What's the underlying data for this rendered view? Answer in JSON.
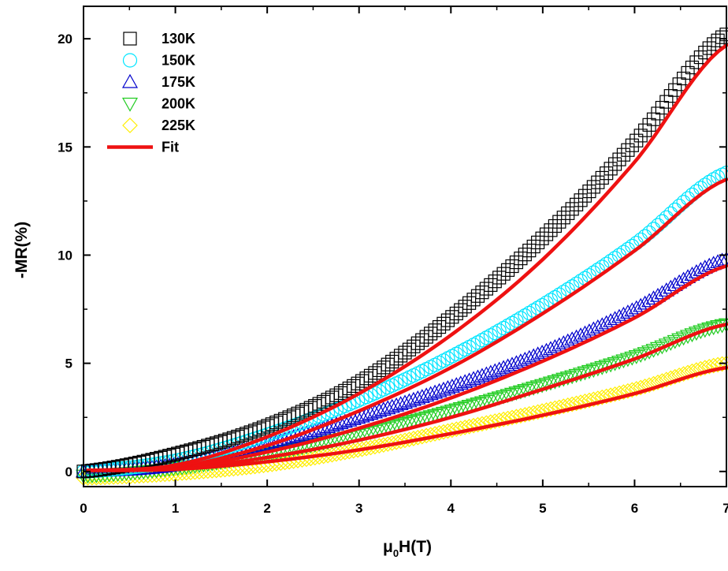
{
  "chart_data": {
    "type": "scatter",
    "xlabel_main": "μ",
    "xlabel_sub": "0",
    "xlabel_rest": "H(T)",
    "ylabel": "-MR(%)",
    "xlim": [
      0,
      7
    ],
    "ylim": [
      -0.7,
      21.5
    ],
    "x_ticks": [
      "0",
      "1",
      "2",
      "3",
      "4",
      "5",
      "6",
      "7"
    ],
    "y_ticks": [
      "0",
      "5",
      "10",
      "15",
      "20"
    ],
    "x_tick_values": [
      0,
      1,
      2,
      3,
      4,
      5,
      6,
      7
    ],
    "y_tick_values": [
      0,
      5,
      10,
      15,
      20
    ],
    "legend_placement": "top-left",
    "series": [
      {
        "name": "130K",
        "marker": "square",
        "color": "#000000",
        "offset": 0.25,
        "data": [
          [
            0.0,
            0.0
          ],
          [
            1.0,
            0.8
          ],
          [
            2.0,
            2.1
          ],
          [
            3.0,
            4.1
          ],
          [
            4.0,
            7.1
          ],
          [
            5.0,
            10.8
          ],
          [
            6.0,
            15.2
          ],
          [
            7.0,
            20.2
          ]
        ]
      },
      {
        "name": "150K",
        "marker": "circle",
        "color": "#00e5ff",
        "offset": 0.25,
        "data": [
          [
            0.0,
            0.0
          ],
          [
            1.0,
            0.5
          ],
          [
            2.0,
            1.7
          ],
          [
            3.0,
            3.3
          ],
          [
            4.0,
            5.3
          ],
          [
            5.0,
            7.7
          ],
          [
            6.0,
            10.5
          ],
          [
            7.0,
            13.8
          ]
        ]
      },
      {
        "name": "175K",
        "marker": "triangle-up",
        "color": "#0000cc",
        "offset": 0.25,
        "data": [
          [
            0.0,
            0.0
          ],
          [
            1.0,
            0.3
          ],
          [
            2.0,
            1.25
          ],
          [
            3.0,
            2.5
          ],
          [
            4.0,
            3.9
          ],
          [
            5.0,
            5.5
          ],
          [
            6.0,
            7.5
          ],
          [
            7.0,
            9.8
          ]
        ]
      },
      {
        "name": "200K",
        "marker": "triangle-down",
        "color": "#22cc22",
        "offset": 0.0,
        "data": [
          [
            0.0,
            -0.2
          ],
          [
            1.0,
            0.15
          ],
          [
            2.0,
            0.8
          ],
          [
            3.0,
            1.7
          ],
          [
            4.0,
            2.8
          ],
          [
            5.0,
            4.0
          ],
          [
            6.0,
            5.3
          ],
          [
            7.0,
            6.8
          ]
        ]
      },
      {
        "name": "225K",
        "marker": "diamond",
        "color": "#ffee00",
        "offset": -0.1,
        "data": [
          [
            0.0,
            -0.3
          ],
          [
            1.0,
            -0.1
          ],
          [
            2.0,
            0.3
          ],
          [
            3.0,
            1.0
          ],
          [
            4.0,
            1.9
          ],
          [
            5.0,
            2.8
          ],
          [
            6.0,
            3.8
          ],
          [
            7.0,
            5.0
          ]
        ]
      }
    ],
    "fit": {
      "name": "Fit",
      "color": "#ee1111",
      "curves": [
        [
          [
            0.05,
            0.05
          ],
          [
            1.0,
            0.3
          ],
          [
            2.0,
            1.6
          ],
          [
            3.0,
            3.6
          ],
          [
            4.0,
            6.3
          ],
          [
            5.0,
            9.8
          ],
          [
            6.0,
            14.3
          ],
          [
            7.0,
            19.7
          ]
        ],
        [
          [
            0.05,
            0.05
          ],
          [
            1.0,
            0.2
          ],
          [
            2.0,
            1.2
          ],
          [
            3.0,
            2.8
          ],
          [
            4.0,
            4.8
          ],
          [
            5.0,
            7.3
          ],
          [
            6.0,
            10.2
          ],
          [
            7.0,
            13.5
          ]
        ],
        [
          [
            0.05,
            0.05
          ],
          [
            1.0,
            0.15
          ],
          [
            2.0,
            0.9
          ],
          [
            3.0,
            2.0
          ],
          [
            4.0,
            3.4
          ],
          [
            5.0,
            5.1
          ],
          [
            6.0,
            7.1
          ],
          [
            7.0,
            9.5
          ]
        ],
        [
          [
            0.05,
            0.05
          ],
          [
            1.0,
            0.12
          ],
          [
            2.0,
            0.65
          ],
          [
            3.0,
            1.45
          ],
          [
            4.0,
            2.5
          ],
          [
            5.0,
            3.8
          ],
          [
            6.0,
            5.2
          ],
          [
            7.0,
            6.8
          ]
        ],
        [
          [
            0.05,
            0.05
          ],
          [
            1.0,
            0.1
          ],
          [
            2.0,
            0.45
          ],
          [
            3.0,
            1.0
          ],
          [
            4.0,
            1.75
          ],
          [
            5.0,
            2.6
          ],
          [
            6.0,
            3.6
          ],
          [
            7.0,
            4.8
          ]
        ]
      ]
    }
  }
}
